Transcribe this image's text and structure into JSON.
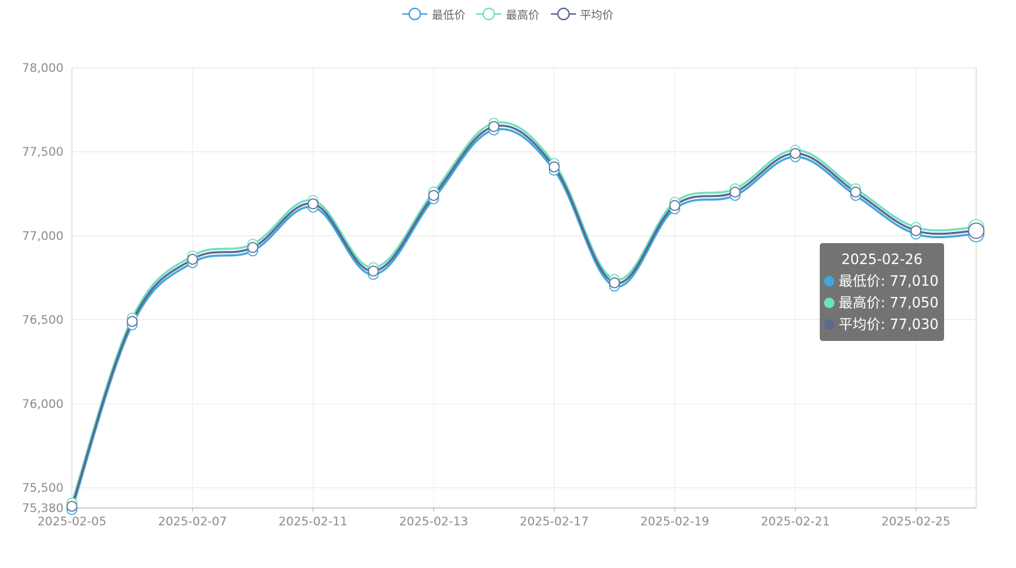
{
  "legend": [
    {
      "label": "最低价",
      "color": "#3fa7dc"
    },
    {
      "label": "最高价",
      "color": "#6ee0c3"
    },
    {
      "label": "平均价",
      "color": "#5a6a8e"
    }
  ],
  "tooltip": {
    "title": "2025-02-26",
    "rows": [
      {
        "label": "最低价: 77,010",
        "color": "#3fa7dc"
      },
      {
        "label": "最高价: 77,050",
        "color": "#6ee0c3"
      },
      {
        "label": "平均价: 77,030",
        "color": "#5a6a8e"
      }
    ]
  },
  "chart_data": {
    "type": "line",
    "x": [
      "2025-02-05",
      "2025-02-06",
      "2025-02-07",
      "2025-02-08",
      "2025-02-11",
      "2025-02-12",
      "2025-02-13",
      "2025-02-14",
      "2025-02-17",
      "2025-02-18",
      "2025-02-19",
      "2025-02-20",
      "2025-02-21",
      "2025-02-24",
      "2025-02-25",
      "2025-02-26"
    ],
    "x_tick_labels": [
      "2025-02-05",
      "2025-02-07",
      "2025-02-11",
      "2025-02-13",
      "2025-02-17",
      "2025-02-19",
      "2025-02-21",
      "2025-02-25"
    ],
    "series": [
      {
        "name": "最低价",
        "color": "#3fa7dc",
        "values": [
          75370,
          76470,
          76840,
          76910,
          77170,
          76770,
          77220,
          77630,
          77390,
          76700,
          77160,
          77240,
          77470,
          77240,
          77010,
          77010
        ]
      },
      {
        "name": "最高价",
        "color": "#6ee0c3",
        "values": [
          75410,
          76510,
          76880,
          76950,
          77210,
          76810,
          77260,
          77670,
          77430,
          76740,
          77200,
          77280,
          77510,
          77280,
          77050,
          77050
        ]
      },
      {
        "name": "平均价",
        "color": "#5a6a8e",
        "values": [
          75390,
          76490,
          76860,
          76930,
          77190,
          76790,
          77240,
          77650,
          77410,
          76720,
          77180,
          77260,
          77490,
          77260,
          77030,
          77030
        ]
      }
    ],
    "y_tick_labels": [
      "75,380",
      "75,500",
      "76,000",
      "76,500",
      "77,000",
      "77,500",
      "78,000"
    ],
    "y_ticks": [
      75380,
      75500,
      76000,
      76500,
      77000,
      77500,
      78000
    ],
    "ylim": [
      75380,
      78000
    ],
    "grid": true,
    "legend_position": "top-center",
    "highlighted_index": 15
  }
}
